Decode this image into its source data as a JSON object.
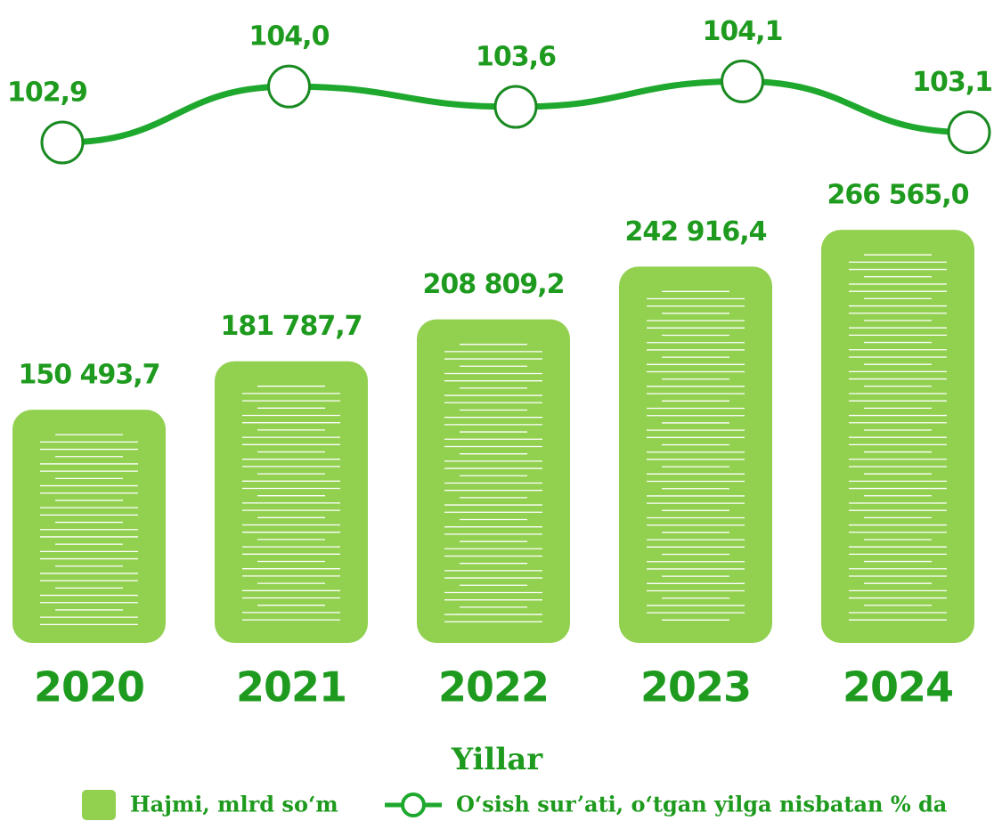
{
  "chart_data": {
    "type": "bar",
    "x_label": "Yillar",
    "categories": [
      "2020",
      "2021",
      "2022",
      "2023",
      "2024"
    ],
    "ylim": [
      0,
      300000
    ],
    "y2lim": [
      102.2,
      105.0
    ],
    "series": [
      {
        "name": "Hajmi, mlrd so‘m",
        "type": "bar",
        "color": "#92d050",
        "values": [
          150493.7,
          181787.7,
          208809.2,
          242916.4,
          266565.0
        ],
        "value_labels": [
          "150 493,7",
          "181 787,7",
          "208 809,2",
          "242 916,4",
          "266 565,0"
        ]
      },
      {
        "name": "O‘sish sur’ati, o‘tgan yilga nisbatan % da",
        "type": "line",
        "axis": "y2",
        "color": "#1fa82e",
        "values": [
          102.9,
          104.0,
          103.6,
          104.1,
          103.1
        ],
        "value_labels": [
          "102,9",
          "104,0",
          "103,6",
          "104,1",
          "103,1"
        ]
      }
    ]
  }
}
